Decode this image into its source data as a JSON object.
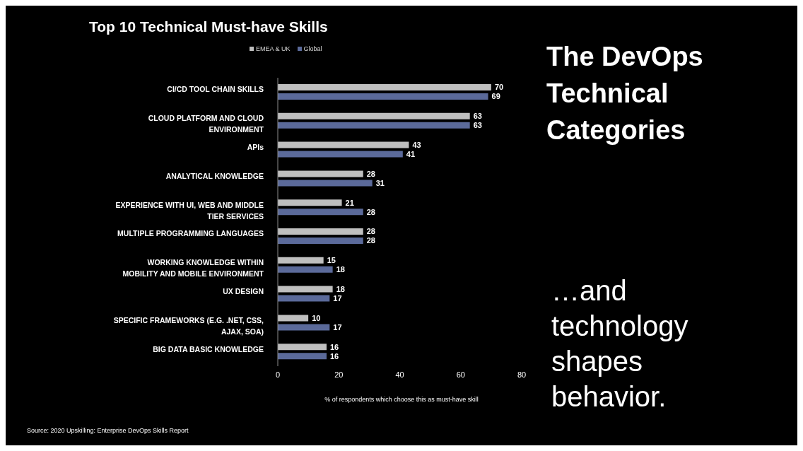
{
  "chart_data": {
    "type": "bar",
    "orientation": "horizontal",
    "title": "Top 10 Technical Must-have Skills",
    "xlabel": "% of respondents which choose this as must-have skill",
    "categories": [
      "CI/CD TOOL CHAIN SKILLS",
      "CLOUD PLATFORM AND CLOUD ENVIRONMENT",
      "APIs",
      "ANALYTICAL KNOWLEDGE",
      "EXPERIENCE WITH UI, WEB AND MIDDLE TIER SERVICES",
      "MULTIPLE PROGRAMMING LANGUAGES",
      "WORKING KNOWLEDGE WITHIN MOBILITY AND MOBILE ENVIRONMENT",
      "UX DESIGN",
      "SPECIFIC FRAMEWORKS (E.G. .NET, CSS, AJAX, SOA)",
      "BIG DATA BASIC KNOWLEDGE"
    ],
    "series": [
      {
        "name": "EMEA & UK",
        "color": "#bfbfbf",
        "values": [
          70,
          63,
          43,
          28,
          21,
          28,
          15,
          18,
          10,
          16
        ]
      },
      {
        "name": "Global",
        "color": "#5b6a9a",
        "values": [
          69,
          63,
          41,
          31,
          28,
          28,
          18,
          17,
          17,
          16
        ]
      }
    ],
    "xlim": [
      0,
      80
    ],
    "xticks": [
      0,
      20,
      40,
      60,
      80
    ],
    "grid": false,
    "legend": "top",
    "data_labels": true,
    "annotations": [
      "The DevOps Technical Categories",
      "…and technology shapes behavior.",
      "Source: 2020 Upskilling: Enterprise DevOps Skills Report"
    ]
  }
}
